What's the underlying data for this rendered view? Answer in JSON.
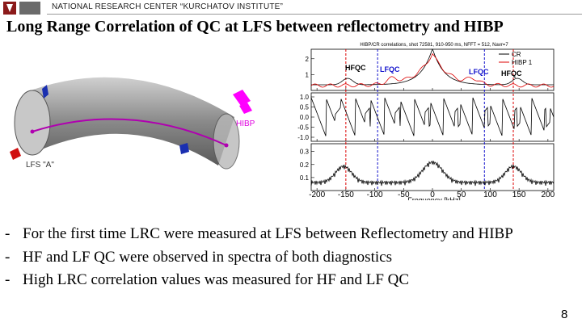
{
  "header": {
    "organization": "NATIONAL RESEARCH CENTER “KURCHATOV INSTITUTE”"
  },
  "title": "Long Range Correlation of QC at LFS between reflectometry and HIBP",
  "diagram": {
    "hibp_label": "HIBP",
    "lfs_label": "LFS \"A\""
  },
  "figure": {
    "caption": "HIBP/CR correlations, shot 72581, 910-950 ms, NFFT = 512, Navr=7",
    "legend": [
      "CR",
      "HIBP 1"
    ],
    "annotations": [
      "HFQC",
      "LFQC",
      "LFQC",
      "HFQC"
    ],
    "xlabel": "Frequency [kHz]",
    "xlim": [
      -210,
      210
    ],
    "xticks": [
      -200,
      -150,
      -100,
      -50,
      0,
      50,
      100,
      150,
      200
    ],
    "panel1_ylim": [
      0,
      2.6
    ],
    "panel1_yticks": [
      1,
      2
    ],
    "panel2_ylim": [
      -1.2,
      1.2
    ],
    "panel2_yticks": [
      {
        "value": 1,
        "label": "1.0"
      },
      {
        "value": 0.5,
        "label": "0.5"
      },
      {
        "value": 0,
        "label": "0.0"
      },
      {
        "value": -0.5,
        "label": "-0.5"
      },
      {
        "value": -1,
        "label": "-1.0"
      }
    ],
    "panel3_ylim": [
      0,
      0.36
    ],
    "panel3_yticks": [
      0.1,
      0.2,
      0.3
    ]
  },
  "bullet_marker": "-",
  "bullets": [
    "For the first time LRC were measured at LFS between Reflectometry and HIBP",
    "HF and LF QC were observed in spectra of both diagnostics",
    " High LRC correlation values was measured  for HF and LF QC"
  ],
  "page_number": "8"
}
